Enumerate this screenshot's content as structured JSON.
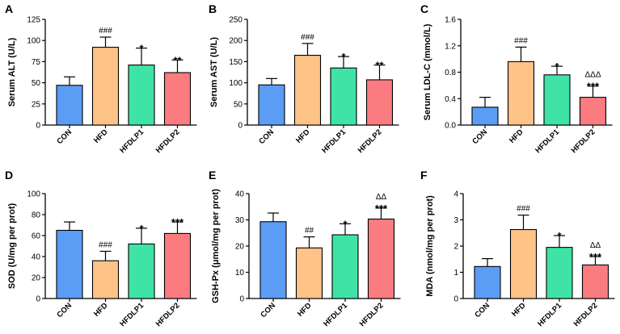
{
  "colors": {
    "CON": "#5b9cf5",
    "HFD": "#ffc287",
    "HFDLP1": "#3fe3a6",
    "HFDLP2": "#fa7b80"
  },
  "chart_data": [
    {
      "type": "bar",
      "panel": "A",
      "ylabel": "Serum ALT (U/L)",
      "categories": [
        "CON",
        "HFD",
        "HFDLP1",
        "HFDLP2"
      ],
      "values": [
        47,
        92,
        71,
        62
      ],
      "errors": [
        10,
        12,
        20,
        15
      ],
      "ylim": [
        0,
        125
      ],
      "yticks": [
        "0",
        "25",
        "50",
        "75",
        "100",
        "125"
      ],
      "annotations": [
        [
          "",
          ""
        ],
        [
          "###",
          ""
        ],
        [
          "*",
          ""
        ],
        [
          "**",
          ""
        ]
      ]
    },
    {
      "type": "bar",
      "panel": "B",
      "ylabel": "Serum AST (U/L)",
      "categories": [
        "CON",
        "HFD",
        "HFDLP1",
        "HFDLP2"
      ],
      "values": [
        95,
        165,
        135,
        107
      ],
      "errors": [
        15,
        28,
        27,
        35
      ],
      "ylim": [
        0,
        250
      ],
      "yticks": [
        "0",
        "50",
        "100",
        "150",
        "200",
        "250"
      ],
      "annotations": [
        [
          "",
          ""
        ],
        [
          "###",
          ""
        ],
        [
          "*",
          ""
        ],
        [
          "**",
          ""
        ]
      ]
    },
    {
      "type": "bar",
      "panel": "C",
      "ylabel": "Serum LDL-C (mmol/L)",
      "categories": [
        "CON",
        "HFD",
        "HFDLP1",
        "HFDLP2"
      ],
      "values": [
        0.27,
        0.96,
        0.76,
        0.42
      ],
      "errors": [
        0.15,
        0.22,
        0.13,
        0.17
      ],
      "ylim": [
        0,
        1.6
      ],
      "yticks": [
        "0.0",
        "0.4",
        "0.8",
        "1.2",
        "1.6"
      ],
      "annotations": [
        [
          "",
          ""
        ],
        [
          "###",
          ""
        ],
        [
          "*",
          ""
        ],
        [
          "***",
          "ΔΔΔ"
        ]
      ]
    },
    {
      "type": "bar",
      "panel": "D",
      "ylabel": "SOD (U/mg per prot)",
      "categories": [
        "CON",
        "HFD",
        "HFDLP1",
        "HFDLP2"
      ],
      "values": [
        65,
        36,
        52,
        62
      ],
      "errors": [
        8,
        9,
        15,
        11
      ],
      "ylim": [
        0,
        100
      ],
      "yticks": [
        "0",
        "20",
        "40",
        "60",
        "80",
        "100"
      ],
      "annotations": [
        [
          "",
          ""
        ],
        [
          "###",
          ""
        ],
        [
          "*",
          ""
        ],
        [
          "***",
          ""
        ]
      ]
    },
    {
      "type": "bar",
      "panel": "E",
      "ylabel": "GSH-Px (μmol/mg per prot)",
      "categories": [
        "CON",
        "HFD",
        "HFDLP1",
        "HFDLP2"
      ],
      "values": [
        29.3,
        19.3,
        24.3,
        30.3
      ],
      "errors": [
        3.3,
        4.2,
        4.2,
        4.2
      ],
      "ylim": [
        0,
        40
      ],
      "yticks": [
        "0",
        "10",
        "20",
        "30",
        "40"
      ],
      "annotations": [
        [
          "",
          ""
        ],
        [
          "##",
          ""
        ],
        [
          "*",
          ""
        ],
        [
          "***",
          "ΔΔ"
        ]
      ]
    },
    {
      "type": "bar",
      "panel": "F",
      "ylabel": "MDA (nmol/mg per prot)",
      "categories": [
        "CON",
        "HFD",
        "HFDLP1",
        "HFDLP2"
      ],
      "values": [
        1.22,
        2.63,
        1.95,
        1.28
      ],
      "errors": [
        0.3,
        0.55,
        0.45,
        0.32
      ],
      "ylim": [
        0,
        4
      ],
      "yticks": [
        "0",
        "1",
        "2",
        "3",
        "4"
      ],
      "annotations": [
        [
          "",
          ""
        ],
        [
          "###",
          ""
        ],
        [
          "*",
          ""
        ],
        [
          "***",
          "ΔΔ"
        ]
      ]
    }
  ]
}
